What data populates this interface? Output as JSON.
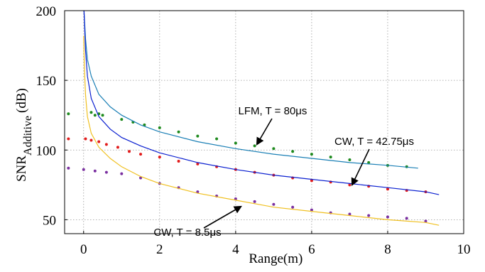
{
  "chart_data": {
    "type": "scatter",
    "xlabel": "Range(m)",
    "ylabel_main": "SNR",
    "ylabel_sub": "Additive",
    "ylabel_unit": "(dB)",
    "xlim": [
      -0.5,
      10
    ],
    "ylim": [
      40,
      200
    ],
    "xticks": [
      0,
      2,
      4,
      6,
      8,
      10
    ],
    "yticks": [
      50,
      100,
      150,
      200
    ],
    "grid": true,
    "annotations": [
      {
        "id": "lfm",
        "text": "LFM, T = 80μs"
      },
      {
        "id": "cw42",
        "text": "CW, T = 42.75μs"
      },
      {
        "id": "cw85",
        "text": "CW, T = 8.5μs"
      }
    ],
    "series": [
      {
        "kind": "points",
        "color": "#1e8a1e",
        "x": [
          -0.4,
          0.2,
          0.3,
          0.4,
          0.5,
          1.0,
          1.3,
          1.6,
          2.0,
          2.5,
          3.0,
          3.5,
          4.0,
          4.5,
          5.0,
          5.5,
          6.0,
          6.5,
          7.0,
          7.5,
          8.0,
          8.5
        ],
        "y": [
          126,
          127,
          125,
          126,
          125,
          122,
          120,
          118,
          116,
          113,
          110,
          108,
          105,
          103,
          101,
          99,
          97,
          95,
          93,
          91,
          89,
          88
        ]
      },
      {
        "kind": "points",
        "color": "#e21b1b",
        "x": [
          -0.4,
          0.05,
          0.2,
          0.4,
          0.6,
          0.9,
          1.2,
          1.5,
          2.0,
          2.5,
          3.0,
          3.5,
          4.0,
          4.5,
          5.0,
          5.5,
          6.0,
          6.5,
          7.0,
          7.5,
          8.0,
          8.5,
          9.0
        ],
        "y": [
          108,
          108,
          107,
          106,
          104,
          102,
          99,
          97,
          95,
          92,
          90,
          88,
          86,
          84,
          82,
          80,
          78,
          77,
          75,
          74,
          72,
          71,
          70
        ]
      },
      {
        "kind": "points",
        "color": "#7a2fa0",
        "x": [
          -0.4,
          0.0,
          0.3,
          0.6,
          1.0,
          1.5,
          2.0,
          2.5,
          3.0,
          3.5,
          4.0,
          4.5,
          5.0,
          5.5,
          6.0,
          6.5,
          7.0,
          7.5,
          8.0,
          8.5,
          9.0
        ],
        "y": [
          87,
          86,
          85,
          84,
          83,
          80,
          76,
          73,
          70,
          67,
          65,
          63,
          61,
          59,
          57,
          55,
          54,
          53,
          52,
          51,
          49
        ]
      },
      {
        "kind": "curve",
        "color": "#1a7fb5",
        "x": [
          0.01,
          0.05,
          0.1,
          0.2,
          0.4,
          0.7,
          1.0,
          1.5,
          2.0,
          3.0,
          4.0,
          5.0,
          6.0,
          7.0,
          8.0,
          8.8
        ],
        "y": [
          200,
          180,
          165,
          153,
          140,
          131,
          125,
          118,
          113,
          106,
          101,
          97,
          94,
          91,
          89,
          87
        ]
      },
      {
        "kind": "curve",
        "color": "#0a1fd0",
        "x": [
          0.01,
          0.05,
          0.1,
          0.2,
          0.4,
          0.7,
          1.0,
          1.5,
          2.0,
          3.0,
          4.0,
          5.0,
          6.0,
          7.0,
          8.0,
          9.0,
          9.35
        ],
        "y": [
          200,
          172,
          153,
          137,
          124,
          115,
          109,
          103,
          98,
          91,
          86,
          82,
          79,
          76,
          73,
          70,
          68
        ]
      },
      {
        "kind": "curve",
        "color": "#f0c020",
        "x": [
          0.0,
          0.02,
          0.05,
          0.1,
          0.2,
          0.4,
          0.7,
          1.0,
          1.5,
          2.0,
          3.0,
          4.0,
          5.0,
          6.0,
          7.0,
          8.0,
          9.0,
          9.35
        ],
        "y": [
          182,
          160,
          140,
          124,
          112,
          102,
          94,
          88,
          81,
          76,
          69,
          64,
          59,
          56,
          53,
          50,
          48,
          46
        ]
      }
    ],
    "title": ""
  }
}
